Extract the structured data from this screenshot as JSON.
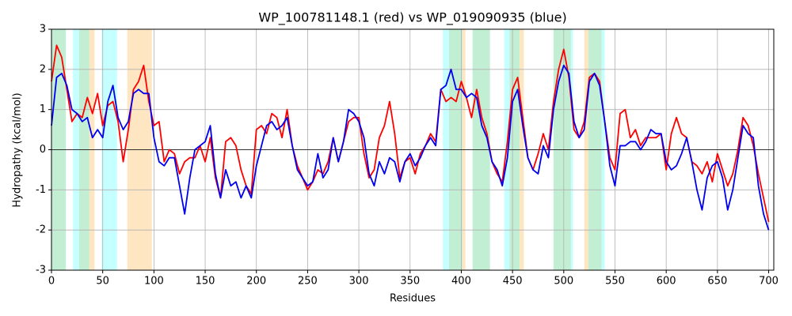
{
  "chart_data": {
    "type": "line",
    "title": "WP_100781148.1 (red) vs WP_019090935 (blue)",
    "x_label": "Residues",
    "y_label": "Hydropathy (kcal/mol)",
    "xlim": [
      0,
      705
    ],
    "ylim": [
      -3,
      3
    ],
    "xticks": [
      0,
      50,
      100,
      150,
      200,
      250,
      300,
      350,
      400,
      450,
      500,
      550,
      600,
      650,
      700
    ],
    "yticks": [
      -3,
      -2,
      -1,
      0,
      1,
      2,
      3
    ],
    "grid": true,
    "hline": 0,
    "spans": [
      {
        "start": 0,
        "end": 14,
        "color": "#c2eed4"
      },
      {
        "start": 21,
        "end": 27,
        "color": "#c6ffff"
      },
      {
        "start": 27,
        "end": 37,
        "color": "#c2eed4"
      },
      {
        "start": 37,
        "end": 42,
        "color": "#ffe6c2"
      },
      {
        "start": 49,
        "end": 64,
        "color": "#c6ffff"
      },
      {
        "start": 74,
        "end": 98,
        "color": "#ffe6c2"
      },
      {
        "start": 382,
        "end": 388,
        "color": "#c6ffff"
      },
      {
        "start": 388,
        "end": 401,
        "color": "#c2eed4"
      },
      {
        "start": 401,
        "end": 404,
        "color": "#ffe6c2"
      },
      {
        "start": 411,
        "end": 428,
        "color": "#c2eed4"
      },
      {
        "start": 442,
        "end": 447,
        "color": "#c6ffff"
      },
      {
        "start": 447,
        "end": 457,
        "color": "#c2eed4"
      },
      {
        "start": 457,
        "end": 461,
        "color": "#ffe6c2"
      },
      {
        "start": 490,
        "end": 507,
        "color": "#c2eed4"
      },
      {
        "start": 507,
        "end": 509,
        "color": "#c6ffff"
      },
      {
        "start": 520,
        "end": 524,
        "color": "#ffe6c2"
      },
      {
        "start": 524,
        "end": 537,
        "color": "#c2eed4"
      },
      {
        "start": 537,
        "end": 540,
        "color": "#c6ffff"
      }
    ],
    "x": [
      0,
      5,
      10,
      15,
      20,
      25,
      30,
      35,
      40,
      45,
      50,
      55,
      60,
      65,
      70,
      75,
      80,
      85,
      90,
      95,
      100,
      105,
      110,
      115,
      120,
      125,
      130,
      135,
      140,
      145,
      150,
      155,
      160,
      165,
      170,
      175,
      180,
      185,
      190,
      195,
      200,
      205,
      210,
      215,
      220,
      225,
      230,
      235,
      240,
      245,
      250,
      255,
      260,
      265,
      270,
      275,
      280,
      285,
      290,
      295,
      300,
      305,
      310,
      315,
      320,
      325,
      330,
      335,
      340,
      345,
      350,
      355,
      360,
      365,
      370,
      375,
      380,
      385,
      390,
      395,
      400,
      405,
      410,
      415,
      420,
      425,
      430,
      435,
      440,
      445,
      450,
      455,
      460,
      465,
      470,
      475,
      480,
      485,
      490,
      495,
      500,
      505,
      510,
      515,
      520,
      525,
      530,
      535,
      540,
      545,
      550,
      555,
      560,
      565,
      570,
      575,
      580,
      585,
      590,
      595,
      600,
      605,
      610,
      615,
      620,
      625,
      630,
      635,
      640,
      645,
      650,
      655,
      660,
      665,
      670,
      675,
      680,
      685,
      690,
      695,
      700
    ],
    "series": [
      {
        "color": "#ff0000",
        "values": [
          1.7,
          2.6,
          2.3,
          1.5,
          0.7,
          0.9,
          0.8,
          1.3,
          0.9,
          1.4,
          0.6,
          1.1,
          1.2,
          0.7,
          -0.3,
          0.5,
          1.5,
          1.7,
          2.1,
          1.2,
          0.6,
          0.7,
          -0.3,
          0.0,
          -0.1,
          -0.6,
          -0.3,
          -0.2,
          -0.2,
          0.1,
          -0.3,
          0.3,
          -0.7,
          -1.2,
          0.2,
          0.3,
          0.1,
          -0.5,
          -0.9,
          -1.1,
          0.5,
          0.6,
          0.4,
          0.9,
          0.8,
          0.3,
          1.0,
          0.1,
          -0.4,
          -0.7,
          -1.0,
          -0.8,
          -0.5,
          -0.6,
          -0.3,
          0.3,
          -0.3,
          0.2,
          0.7,
          0.8,
          0.8,
          -0.1,
          -0.7,
          -0.5,
          0.3,
          0.6,
          1.2,
          0.4,
          -0.7,
          -0.3,
          -0.2,
          -0.6,
          -0.1,
          0.1,
          0.4,
          0.2,
          1.5,
          1.2,
          1.3,
          1.2,
          1.7,
          1.3,
          0.8,
          1.5,
          0.8,
          0.4,
          -0.3,
          -0.6,
          -0.8,
          0.2,
          1.5,
          1.8,
          0.8,
          -0.2,
          -0.5,
          -0.1,
          0.4,
          0.0,
          1.2,
          2.0,
          2.5,
          1.8,
          0.5,
          0.3,
          0.7,
          1.8,
          1.9,
          1.7,
          0.7,
          -0.2,
          -0.5,
          0.9,
          1.0,
          0.3,
          0.5,
          0.1,
          0.3,
          0.3,
          0.3,
          0.4,
          -0.5,
          0.4,
          0.8,
          0.4,
          0.3,
          -0.3,
          -0.4,
          -0.6,
          -0.3,
          -0.8,
          -0.1,
          -0.5,
          -0.9,
          -0.6,
          0.0,
          0.8,
          0.6,
          0.1,
          -0.6,
          -1.2,
          -1.8
        ]
      },
      {
        "color": "#0000ee",
        "values": [
          0.6,
          1.8,
          1.9,
          1.6,
          1.0,
          0.9,
          0.7,
          0.8,
          0.3,
          0.5,
          0.3,
          1.2,
          1.6,
          0.8,
          0.5,
          0.7,
          1.4,
          1.5,
          1.4,
          1.4,
          0.3,
          -0.3,
          -0.4,
          -0.2,
          -0.2,
          -0.9,
          -1.6,
          -0.7,
          0.0,
          0.1,
          0.2,
          0.6,
          -0.6,
          -1.2,
          -0.5,
          -0.9,
          -0.8,
          -1.2,
          -0.9,
          -1.2,
          -0.4,
          0.1,
          0.6,
          0.7,
          0.5,
          0.6,
          0.8,
          0.1,
          -0.5,
          -0.7,
          -0.9,
          -0.8,
          -0.1,
          -0.7,
          -0.5,
          0.3,
          -0.3,
          0.2,
          1.0,
          0.9,
          0.7,
          0.3,
          -0.6,
          -0.9,
          -0.3,
          -0.6,
          -0.2,
          -0.3,
          -0.8,
          -0.3,
          -0.1,
          -0.4,
          -0.2,
          0.1,
          0.3,
          0.1,
          1.5,
          1.6,
          2.0,
          1.5,
          1.5,
          1.3,
          1.4,
          1.3,
          0.6,
          0.3,
          -0.3,
          -0.5,
          -0.9,
          -0.2,
          1.2,
          1.5,
          0.6,
          -0.2,
          -0.5,
          -0.6,
          0.1,
          -0.2,
          1.0,
          1.7,
          2.1,
          1.9,
          0.7,
          0.3,
          0.5,
          1.7,
          1.9,
          1.6,
          0.7,
          -0.4,
          -0.9,
          0.1,
          0.1,
          0.2,
          0.2,
          0.0,
          0.2,
          0.5,
          0.4,
          0.4,
          -0.3,
          -0.5,
          -0.4,
          -0.1,
          0.3,
          -0.3,
          -1.0,
          -1.5,
          -0.7,
          -0.4,
          -0.3,
          -0.7,
          -1.5,
          -1.0,
          -0.2,
          0.6,
          0.4,
          0.3,
          -0.9,
          -1.6,
          -2.0
        ]
      }
    ]
  }
}
